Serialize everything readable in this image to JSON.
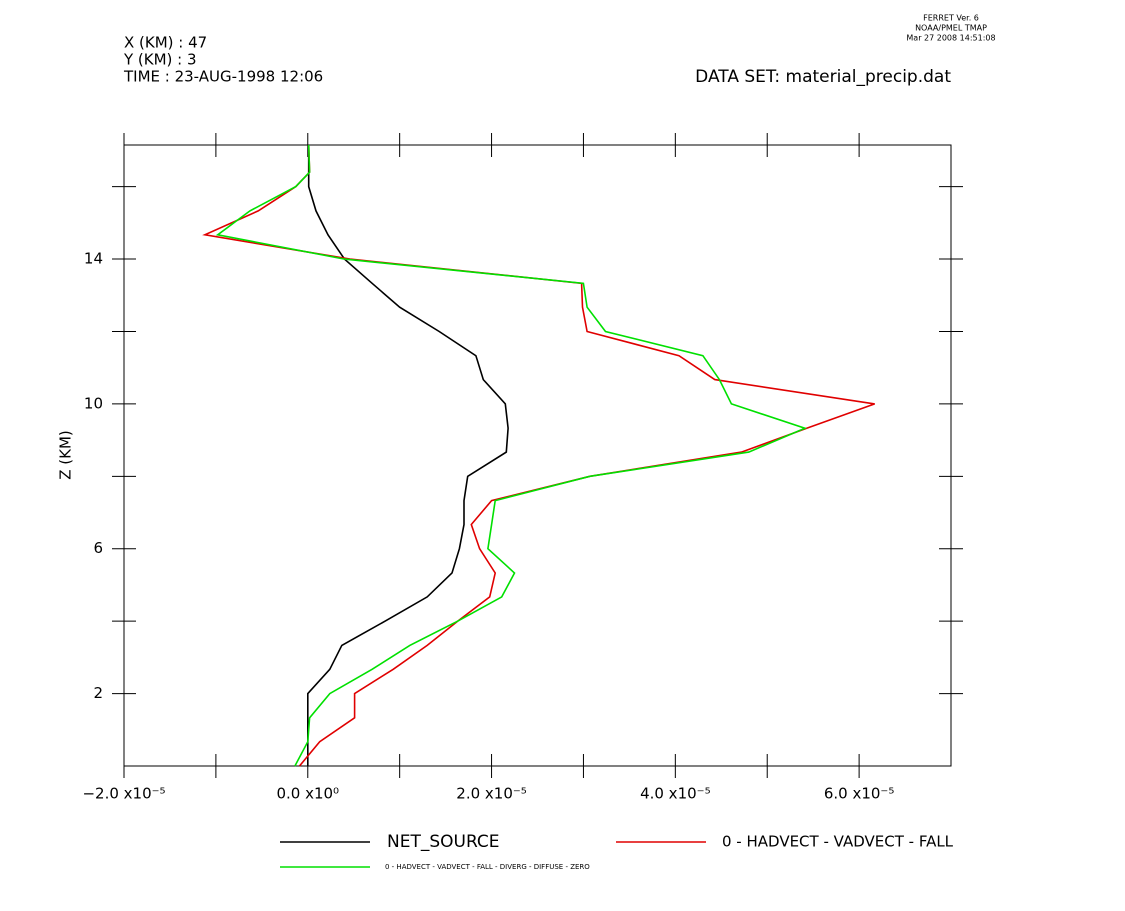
{
  "chart_data": {
    "type": "line",
    "header": {
      "x_pos": "X (KM) : 47",
      "y_pos": "Y (KM) : 3",
      "time": "TIME : 23-AUG-1998 12:06",
      "dataset": "DATA SET: material_precip.dat"
    },
    "stamp": [
      "FERRET Ver. 6",
      "NOAA/PMEL TMAP",
      "Mar 27 2008 14:51:08"
    ],
    "y_label": "Z (KM)",
    "z": [
      0,
      0.67,
      1.33,
      2,
      2.67,
      3.33,
      4,
      4.67,
      5.33,
      6,
      6.67,
      7.33,
      8,
      8.67,
      9.33,
      10,
      10.67,
      11.33,
      12,
      12.67,
      13.33,
      14,
      14.67,
      15.33,
      16,
      16.4,
      17.15
    ],
    "series": [
      {
        "name": "NET_SOURCE",
        "color": "#000000",
        "values": [
          0,
          0,
          0,
          0,
          2.4e-06,
          3.7e-06,
          8.4e-06,
          1.3e-05,
          1.57e-05,
          1.65e-05,
          1.7e-05,
          1.7e-05,
          1.74e-05,
          2.16e-05,
          2.18e-05,
          2.15e-05,
          1.91e-05,
          1.83e-05,
          1.43e-05,
          1e-05,
          7e-06,
          4e-06,
          2.2e-06,
          9e-07,
          1e-07,
          1e-07,
          1e-07
        ]
      },
      {
        "name": "0 - HADVECT - VADVECT - FALL",
        "color": "#e00000",
        "values": [
          -9e-07,
          1.3e-06,
          5.1e-06,
          5.1e-06,
          9.3e-06,
          1.3e-05,
          1.63e-05,
          1.98e-05,
          2.04e-05,
          1.87e-05,
          1.78e-05,
          2e-05,
          3.07e-05,
          4.72e-05,
          5.43e-05,
          6.17e-05,
          4.43e-05,
          4.04e-05,
          3.04e-05,
          2.99e-05,
          2.98e-05,
          4.6e-06,
          -1.12e-05,
          -5.4e-06,
          -1.3e-06,
          2e-07,
          1e-07
        ]
      },
      {
        "name": "0 - HADVECT - VADVECT - FALL - DIVERG - DIFFUSE - ZERO",
        "color": "#00e000",
        "values": [
          -1.4e-06,
          0,
          2e-07,
          2.4e-06,
          7e-06,
          1.11e-05,
          1.63e-05,
          2.11e-05,
          2.25e-05,
          1.96e-05,
          2e-05,
          2.04e-05,
          3.07e-05,
          4.8e-05,
          5.41e-05,
          4.61e-05,
          4.48e-05,
          4.3e-05,
          3.24e-05,
          3.04e-05,
          3e-05,
          4e-06,
          -9.8e-06,
          -6.3e-06,
          -1.3e-06,
          2e-07,
          1e-07
        ]
      }
    ],
    "xlim": [
      -2e-05,
      7e-05
    ],
    "xticks": [
      {
        "value": -2e-05,
        "label": "−2.0 x10⁻⁵"
      },
      {
        "value": 0,
        "label": "0.0 x10⁰"
      },
      {
        "value": 2e-05,
        "label": "2.0 x10⁻⁵"
      },
      {
        "value": 4e-05,
        "label": "4.0 x10⁻⁵"
      },
      {
        "value": 6e-05,
        "label": "6.0 x10⁻⁵"
      }
    ],
    "x_minor_ticks": [
      -1e-05,
      1e-05,
      3e-05,
      5e-05
    ],
    "ylim": [
      0,
      17.15
    ],
    "yticks": [
      2,
      6,
      10,
      14
    ],
    "y_minor_ticks": [
      4,
      8,
      12,
      16
    ]
  }
}
